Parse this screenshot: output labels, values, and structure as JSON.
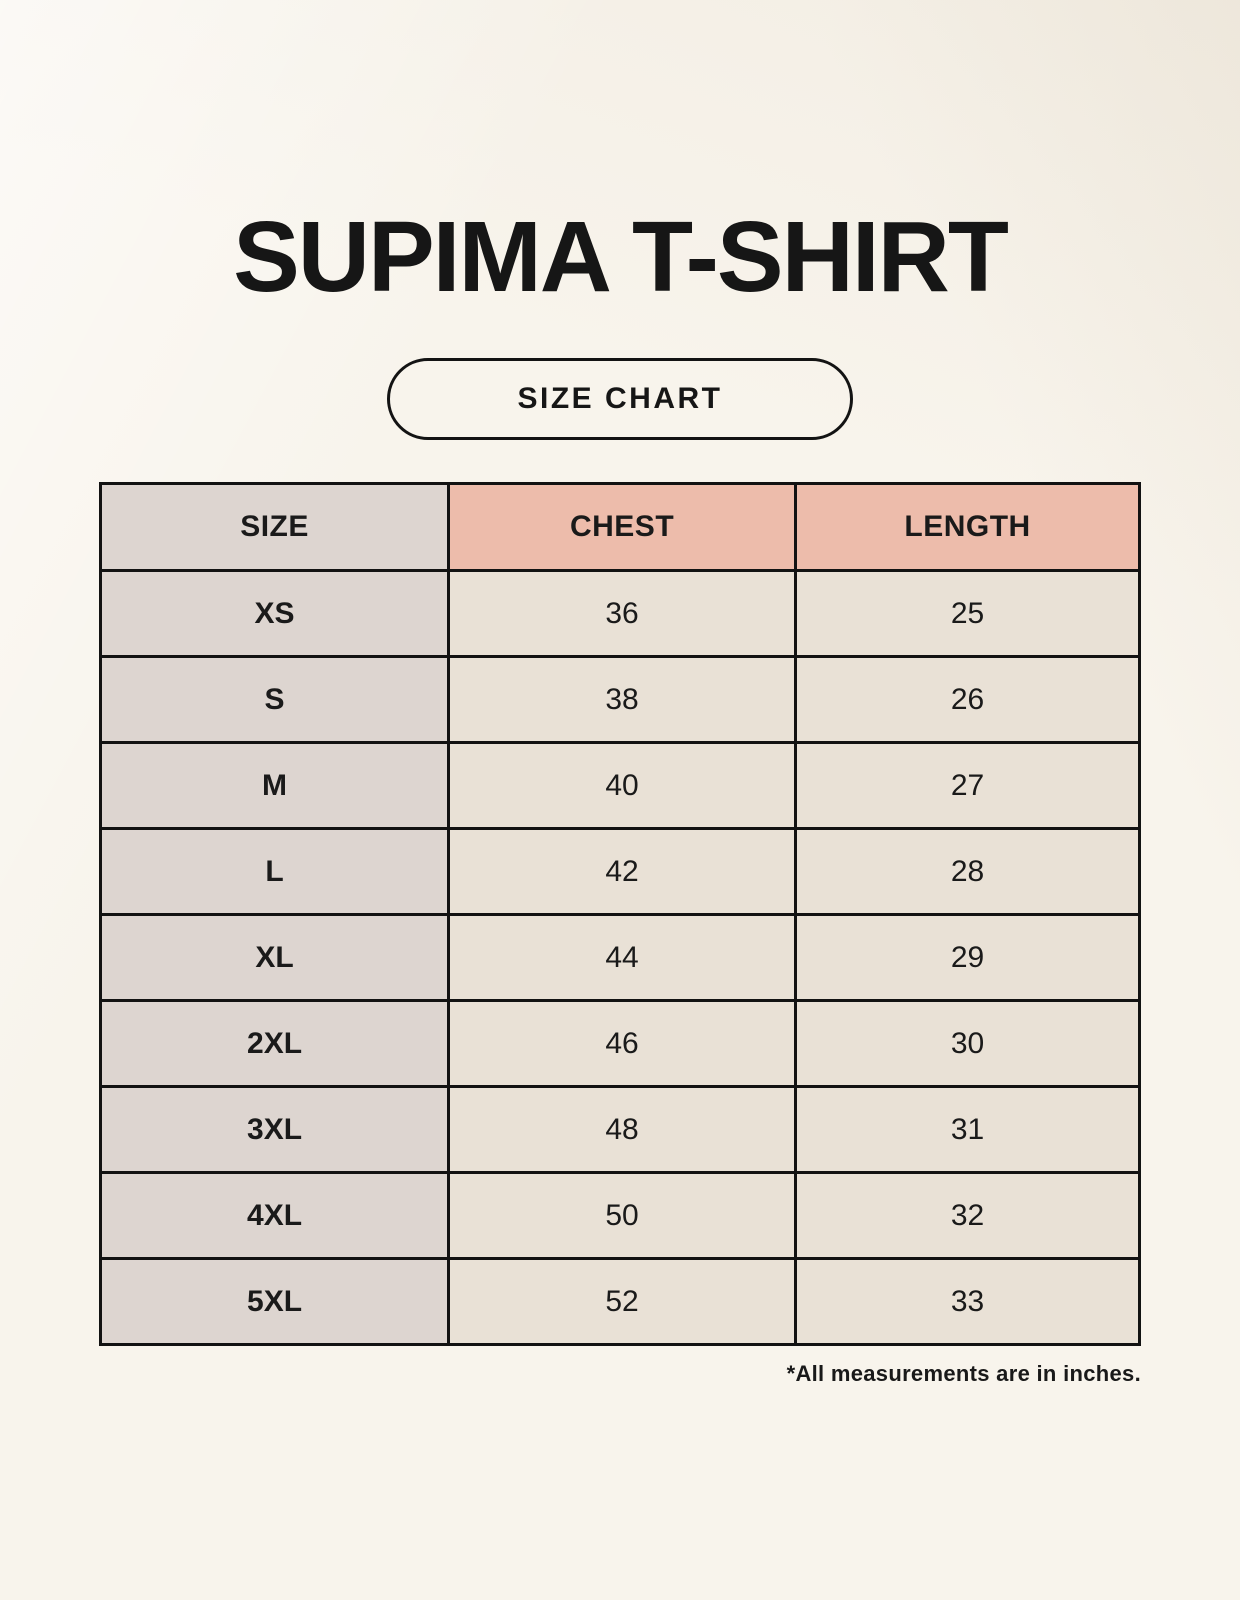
{
  "header": {
    "title": "SUPIMA T-SHIRT",
    "badge_label": "SIZE CHART"
  },
  "table": {
    "columns": [
      "SIZE",
      "CHEST",
      "LENGTH"
    ],
    "rows": [
      [
        "XS",
        "36",
        "25"
      ],
      [
        "S",
        "38",
        "26"
      ],
      [
        "M",
        "40",
        "27"
      ],
      [
        "L",
        "42",
        "28"
      ],
      [
        "XL",
        "44",
        "29"
      ],
      [
        "2XL",
        "46",
        "30"
      ],
      [
        "3XL",
        "48",
        "31"
      ],
      [
        "4XL",
        "50",
        "32"
      ],
      [
        "5XL",
        "52",
        "33"
      ]
    ]
  },
  "footnote": "*All measurements are in inches.",
  "colors": {
    "background": "#f8f4ec",
    "size_column": "#ddd5d0",
    "header_accent": "#edbcab",
    "data_cell": "#e9e1d6",
    "border": "#121212",
    "text": "#1a1a1a"
  }
}
